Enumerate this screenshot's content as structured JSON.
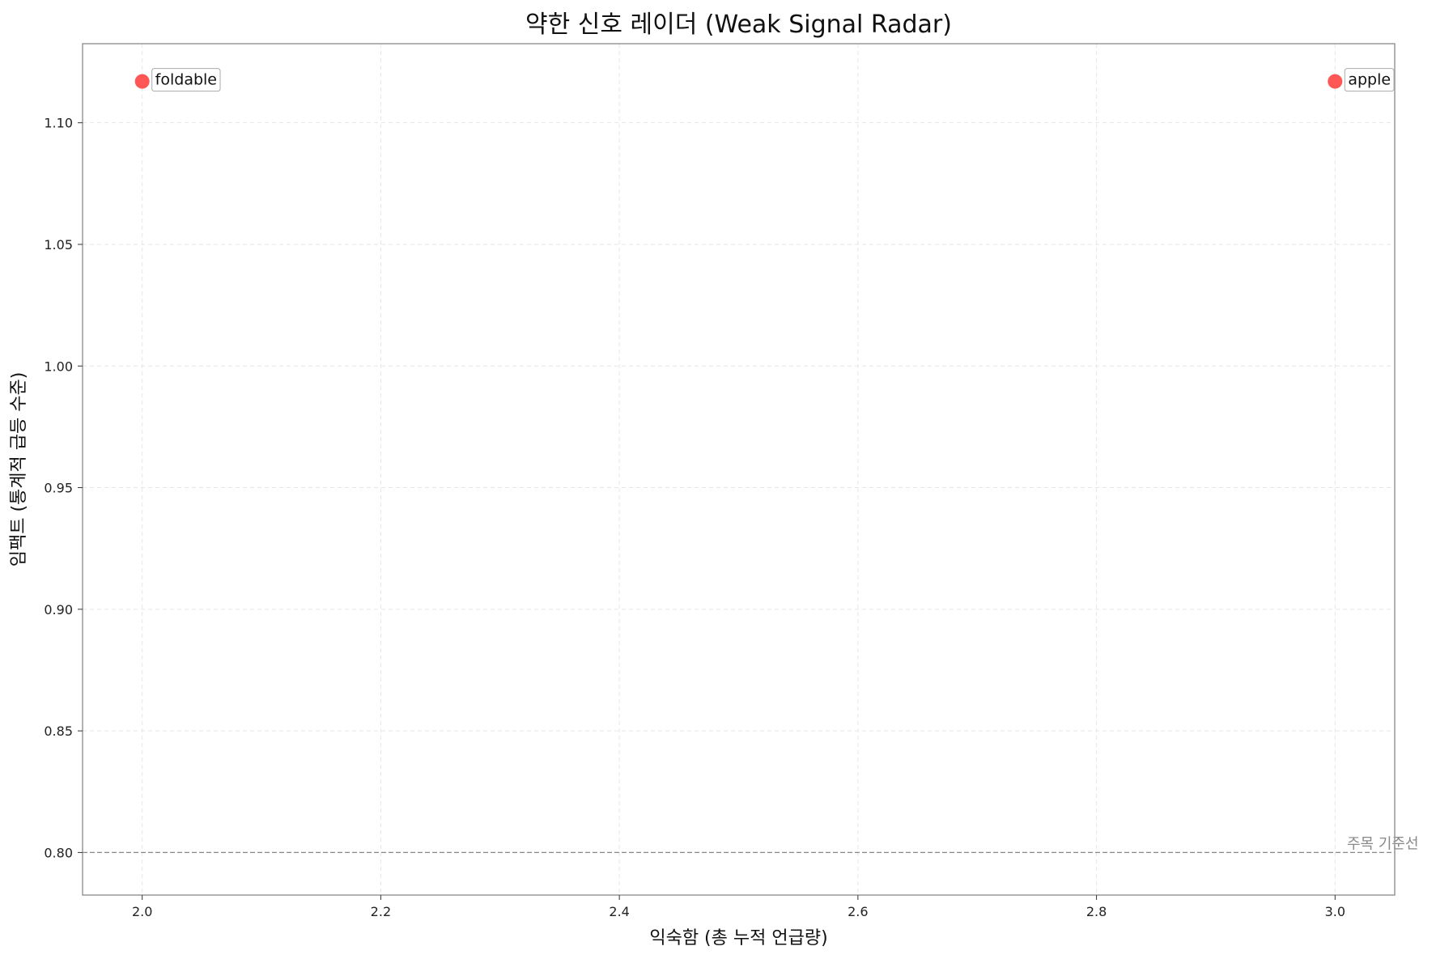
{
  "chart_data": {
    "type": "scatter",
    "title": "약한 신호 레이더 (Weak Signal Radar)",
    "xlabel": "익숙함 (총 누적 언급량)",
    "ylabel": "임팩트 (통계적 급등 수준)",
    "xlim": [
      1.95,
      3.05
    ],
    "ylim": [
      0.7825,
      1.1325
    ],
    "x_ticks": [
      "2.0",
      "2.2",
      "2.4",
      "2.6",
      "2.8",
      "3.0"
    ],
    "y_ticks": [
      "0.80",
      "0.85",
      "0.90",
      "0.95",
      "1.00",
      "1.05",
      "1.10"
    ],
    "grid": true,
    "points": [
      {
        "label": "foldable",
        "x": 2.0,
        "y": 1.117
      },
      {
        "label": "apple",
        "x": 3.0,
        "y": 1.117
      }
    ],
    "reference_line": {
      "y": 0.8,
      "label": "주목 기준선",
      "color": "#888888"
    },
    "point_color": "#ff4d4d"
  }
}
